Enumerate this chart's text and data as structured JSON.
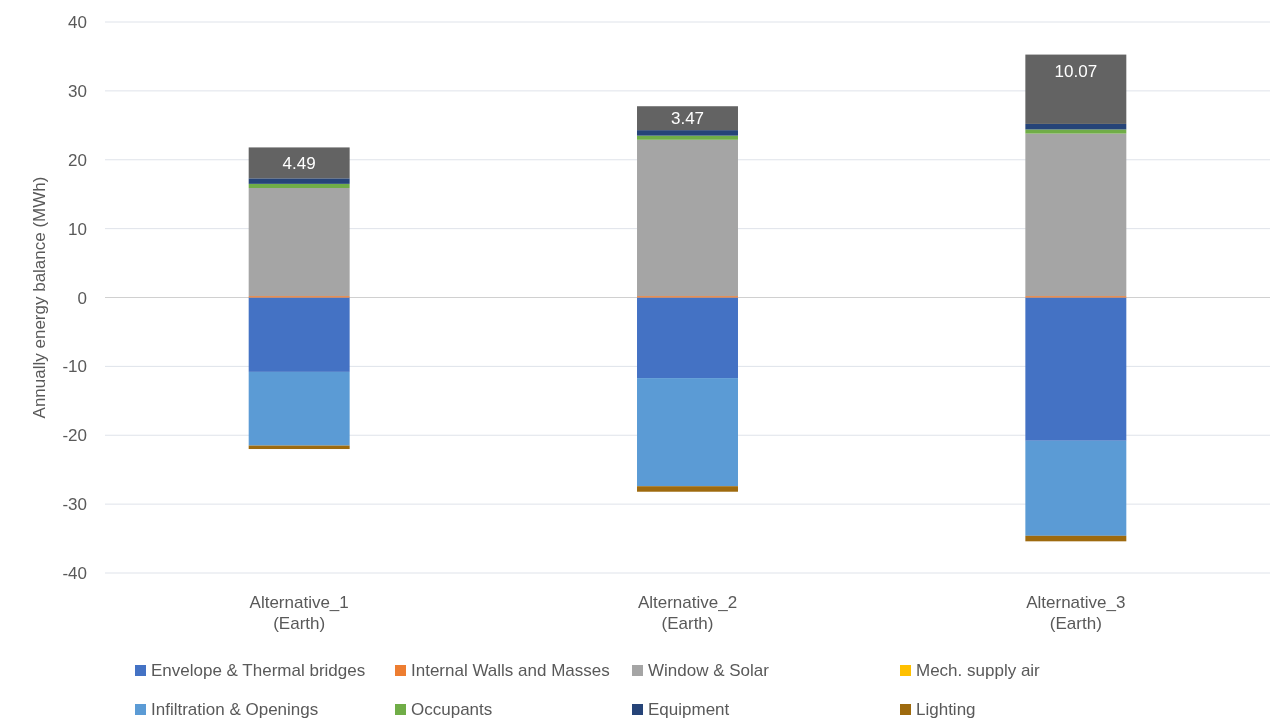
{
  "chart_data": {
    "type": "bar",
    "stacked": true,
    "ylabel": "Annually energy balance (MWh)",
    "categories": [
      "Alternative_1\n(Earth)",
      "Alternative_2\n(Earth)",
      "Alternative_3\n(Earth)"
    ],
    "ylim": [
      -40,
      40
    ],
    "yticks": [
      -40,
      -30,
      -20,
      -10,
      0,
      10,
      20,
      30,
      40
    ],
    "grid": "y",
    "legend": "bottom",
    "series": [
      {
        "name": "Envelope & Thermal bridges",
        "color": "#4472c4",
        "values": [
          -10.8,
          -11.7,
          -20.8
        ]
      },
      {
        "name": "Internal Walls and Masses",
        "color": "#ed7d31",
        "values": [
          0.2,
          0.2,
          0.2
        ]
      },
      {
        "name": "Window & Solar",
        "color": "#a5a5a5",
        "values": [
          15.7,
          22.7,
          23.6
        ]
      },
      {
        "name": "Mech. supply air",
        "color": "#ffc000",
        "values": [
          0,
          0,
          0
        ]
      },
      {
        "name": "Infiltration & Openings",
        "color": "#5b9bd5",
        "values": [
          -10.7,
          -15.7,
          -13.8
        ]
      },
      {
        "name": "Occupants",
        "color": "#70ad47",
        "values": [
          0.6,
          0.6,
          0.6
        ]
      },
      {
        "name": "Equipment",
        "color": "#264478",
        "values": [
          0.8,
          0.8,
          0.8
        ]
      },
      {
        "name": "Lighting",
        "color": "#9e6a0e",
        "values": [
          -0.5,
          -0.8,
          -0.8
        ]
      },
      {
        "color": "#636363",
        "values": [
          4.49,
          3.47,
          10.07
        ],
        "value_labels": [
          "4.49",
          "3.47",
          "10.07"
        ]
      }
    ]
  }
}
